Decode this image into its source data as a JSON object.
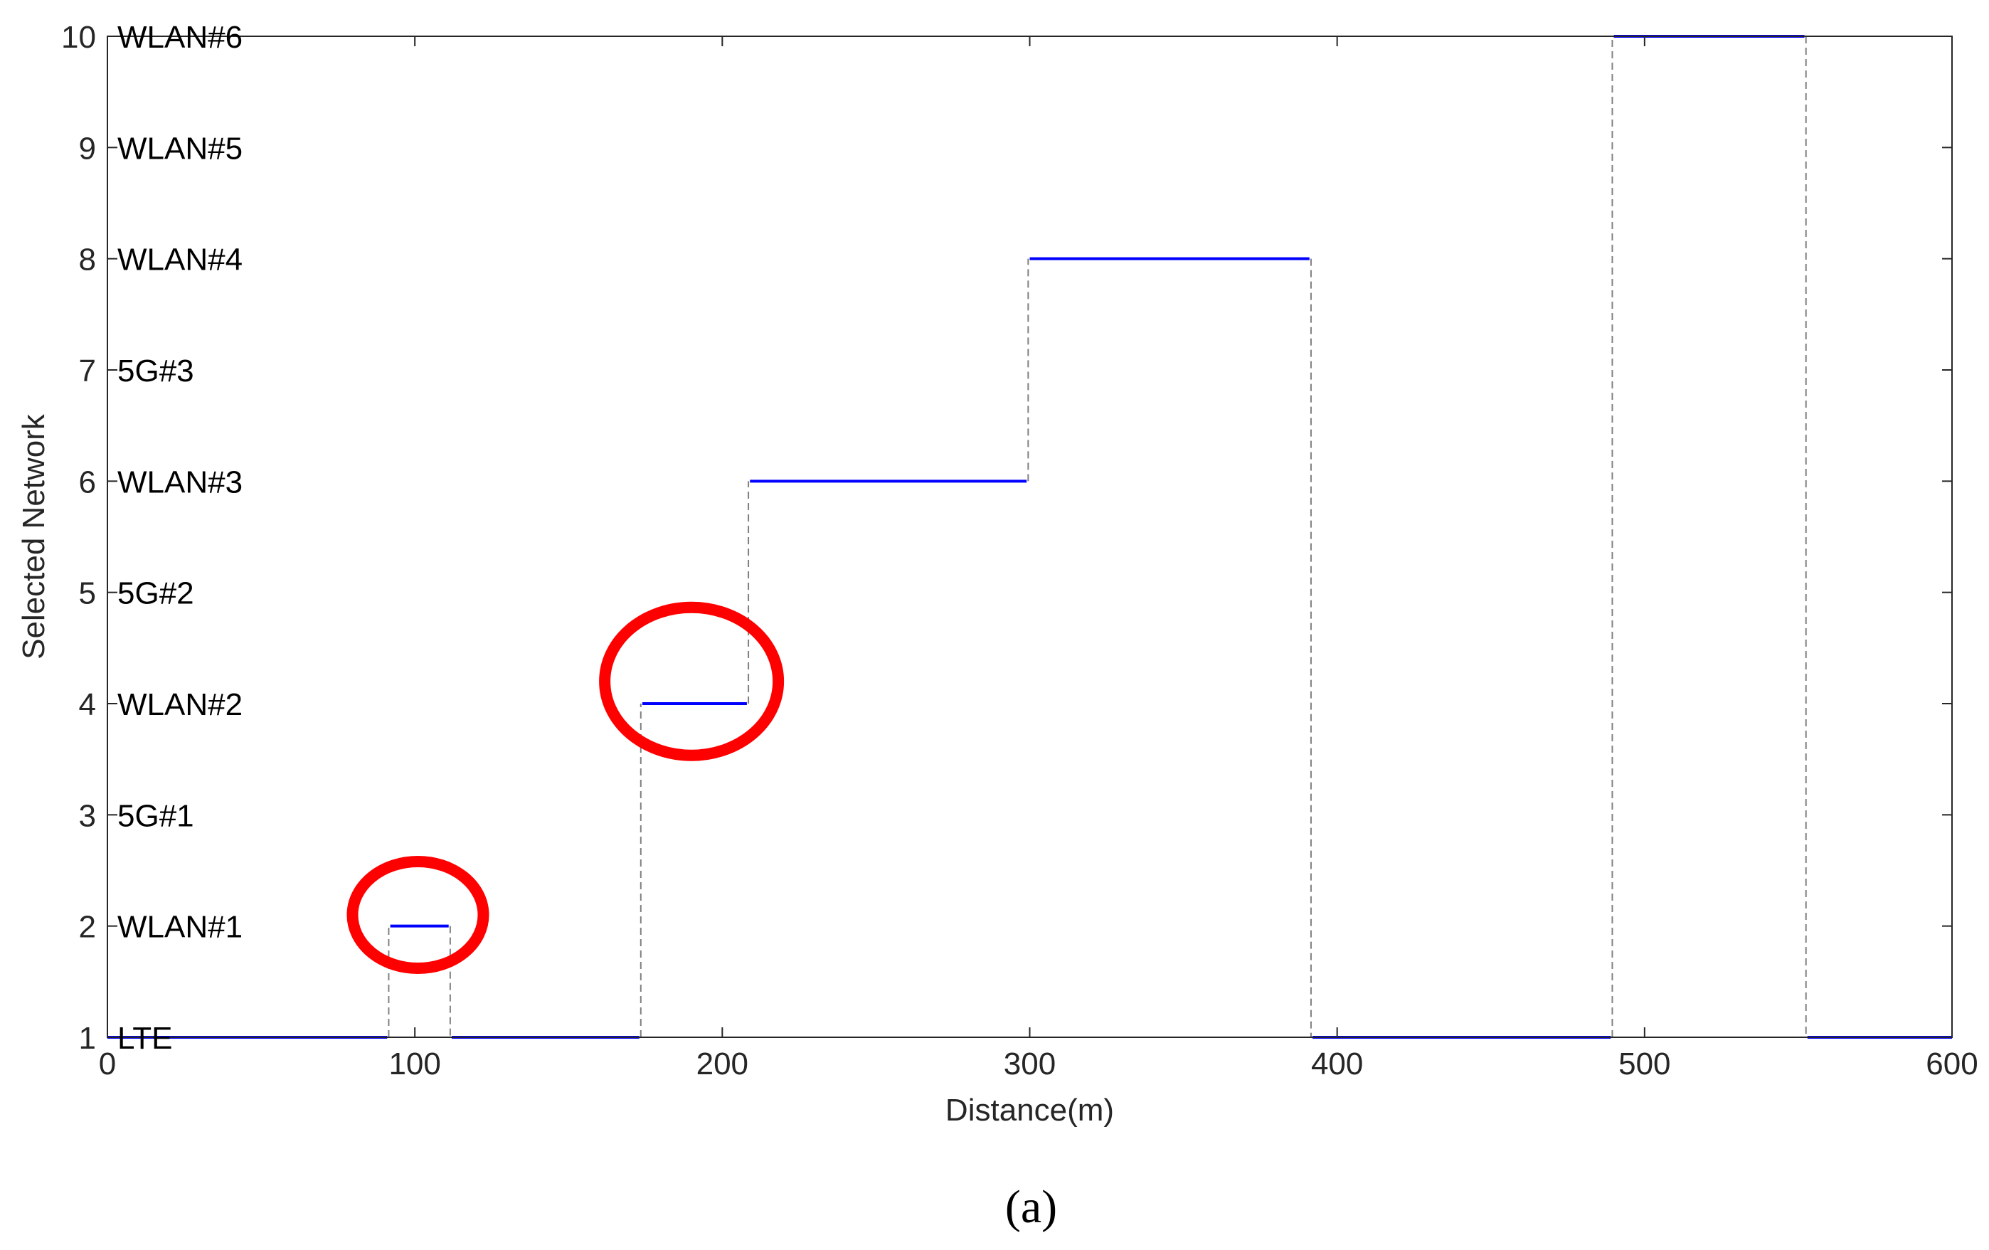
{
  "chart_data": {
    "type": "line",
    "xlabel": "Distance(m)",
    "ylabel": "Selected Network",
    "xlim": [
      0,
      600
    ],
    "ylim": [
      1,
      10
    ],
    "x_ticks": [
      0,
      100,
      200,
      300,
      400,
      500,
      600
    ],
    "y_ticks": [
      1,
      2,
      3,
      4,
      5,
      6,
      7,
      8,
      9,
      10
    ],
    "grid": false,
    "network_labels": [
      {
        "y": 1,
        "text": "LTE"
      },
      {
        "y": 2,
        "text": "WLAN#1"
      },
      {
        "y": 3,
        "text": "5G#1"
      },
      {
        "y": 4,
        "text": "WLAN#2"
      },
      {
        "y": 5,
        "text": "5G#2"
      },
      {
        "y": 6,
        "text": "WLAN#3"
      },
      {
        "y": 7,
        "text": "5G#3"
      },
      {
        "y": 8,
        "text": "WLAN#4"
      },
      {
        "y": 9,
        "text": "WLAN#5"
      },
      {
        "y": 10,
        "text": "WLAN#6"
      }
    ],
    "segments": [
      {
        "x_start": 0,
        "x_end": 91,
        "y": 1
      },
      {
        "x_start": 92,
        "x_end": 111,
        "y": 2
      },
      {
        "x_start": 112,
        "x_end": 173,
        "y": 1
      },
      {
        "x_start": 174,
        "x_end": 208,
        "y": 4
      },
      {
        "x_start": 209,
        "x_end": 299,
        "y": 6
      },
      {
        "x_start": 300,
        "x_end": 391,
        "y": 8
      },
      {
        "x_start": 392,
        "x_end": 489,
        "y": 1
      },
      {
        "x_start": 490,
        "x_end": 552,
        "y": 10
      },
      {
        "x_start": 553,
        "x_end": 600,
        "y": 1
      }
    ],
    "highlights": [
      {
        "x_center": 101,
        "y_center": 2.1
      },
      {
        "x_center": 190,
        "y_center": 4.2
      }
    ],
    "colors": {
      "series": "#0000ff",
      "transition": "#808080",
      "highlight": "#ff0000",
      "axis": "#262626"
    },
    "caption": "(a)"
  }
}
